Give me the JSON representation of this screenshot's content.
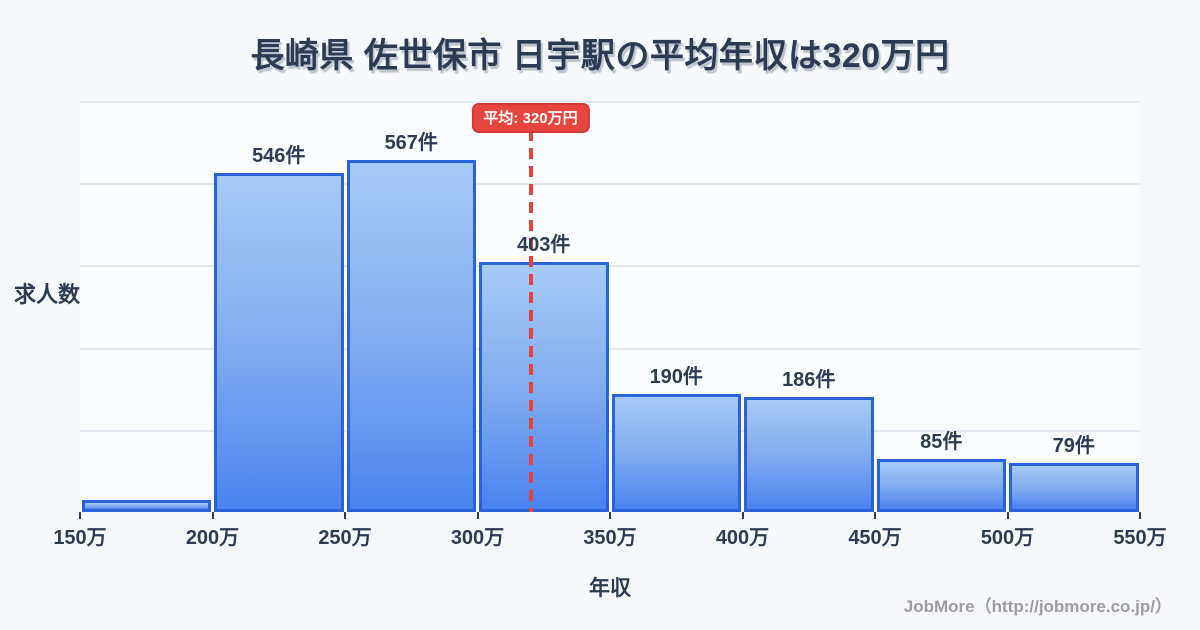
{
  "title": "長崎県 佐世保市 日宇駅の平均年収は320万円",
  "footer": "JobMore（http://jobmore.co.jp/）",
  "chart_data": {
    "type": "bar",
    "subtype": "histogram",
    "title": "長崎県 佐世保市 日宇駅の平均年収は320万円",
    "xlabel": "年収",
    "ylabel": "求人数",
    "x_tick_labels": [
      "150万",
      "200万",
      "250万",
      "300万",
      "350万",
      "400万",
      "450万",
      "500万",
      "550万"
    ],
    "x_range_man_yen": [
      150,
      550
    ],
    "bin_width_man_yen": 50,
    "bins": [
      {
        "range": "150万-200万",
        "value": 19,
        "label": "",
        "estimated": true
      },
      {
        "range": "200万-250万",
        "value": 546,
        "label": "546件"
      },
      {
        "range": "250万-300万",
        "value": 567,
        "label": "567件"
      },
      {
        "range": "300万-350万",
        "value": 403,
        "label": "403件"
      },
      {
        "range": "350万-400万",
        "value": 190,
        "label": "190件"
      },
      {
        "range": "400万-450万",
        "value": 186,
        "label": "186件"
      },
      {
        "range": "450万-500万",
        "value": 85,
        "label": "85件"
      },
      {
        "range": "500万-550万",
        "value": 79,
        "label": "79件"
      }
    ],
    "average": {
      "value_man_yen": 320,
      "badge_label": "平均: 320万円"
    },
    "grid": true,
    "gridline_intervals": 5,
    "legend": false,
    "colors": {
      "bar_fill_top": "#a6cbf6",
      "bar_fill_bottom": "#4a83f0",
      "bar_border": "#2a62d9",
      "average_line": "#e8423c",
      "badge_background": "#e64540",
      "badge_text": "#ffffff",
      "text": "#2d3b55",
      "gridline": "#e5e8f0",
      "footer_text": "#9c9ca4",
      "background": "#f7f8fb"
    }
  }
}
